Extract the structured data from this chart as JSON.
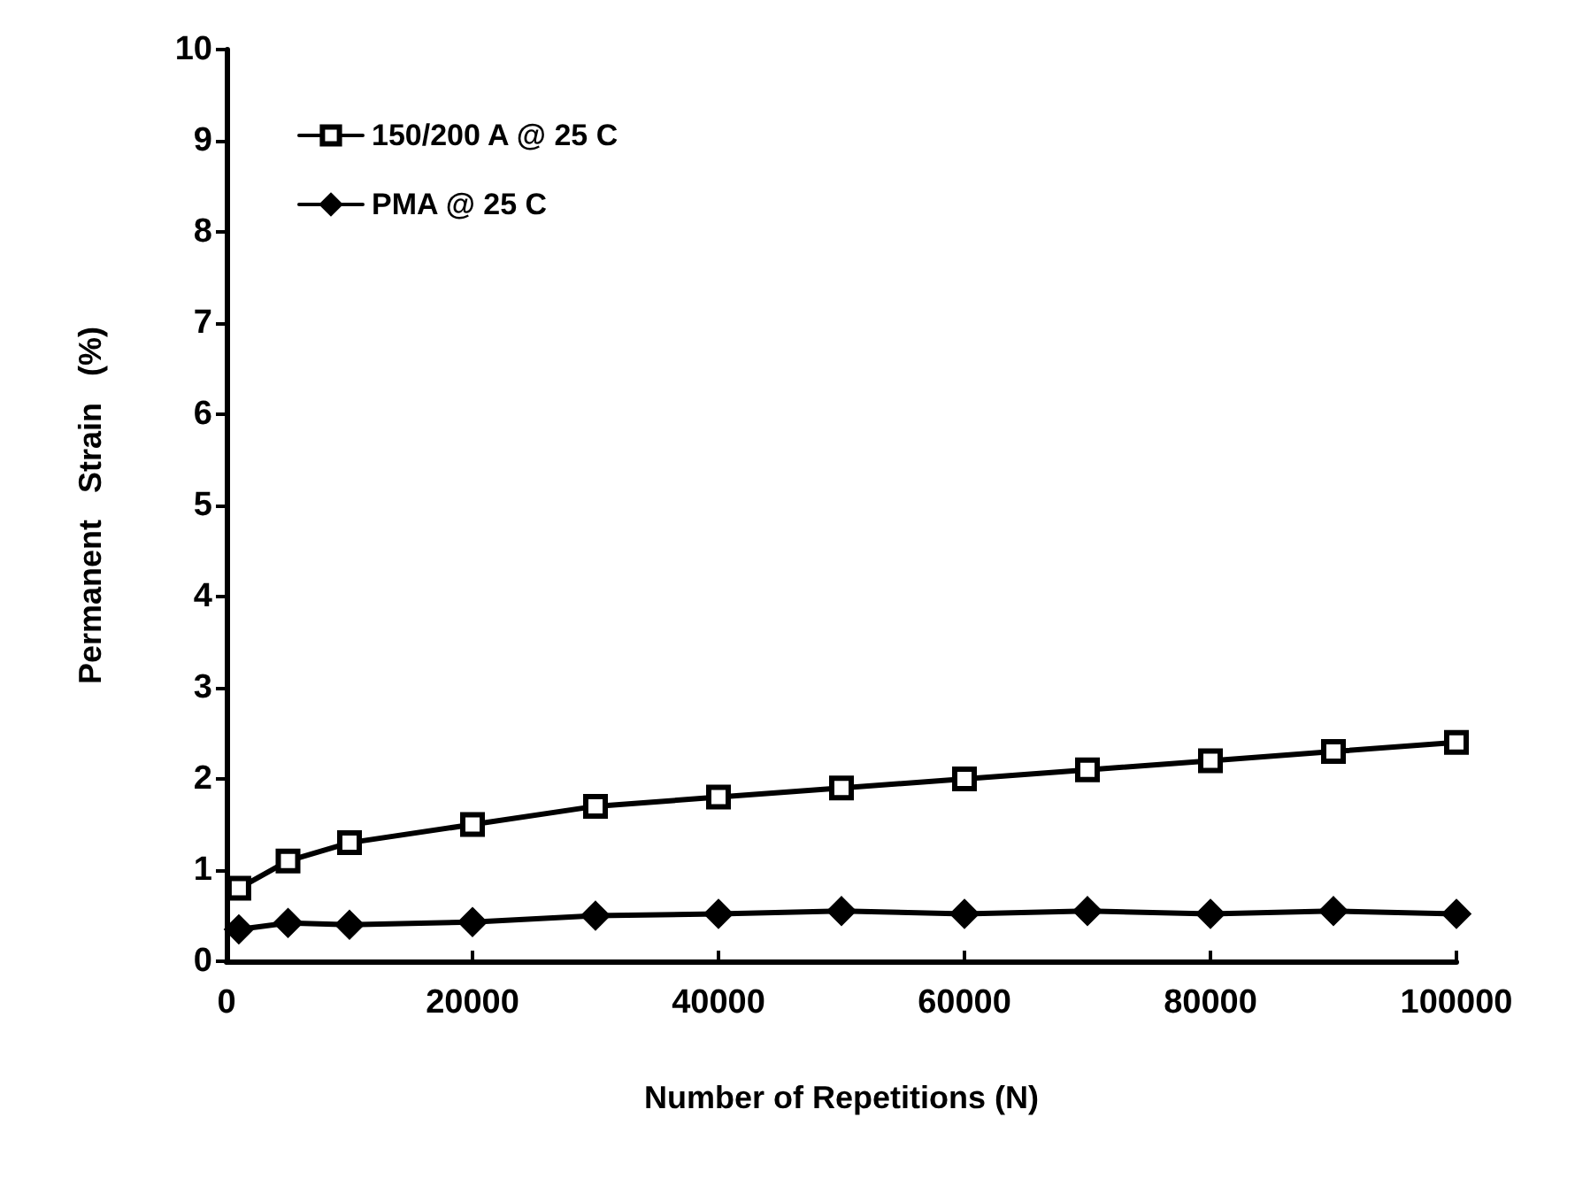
{
  "chart_data": {
    "type": "line",
    "xlabel": "Number of Repetitions (N)",
    "ylabel": "Permanent   Strain   (%)",
    "xlim": [
      0,
      100000
    ],
    "xticks": [
      0,
      20000,
      40000,
      60000,
      80000,
      100000
    ],
    "ylim": [
      0,
      10
    ],
    "yticks": [
      0,
      1,
      2,
      3,
      4,
      5,
      6,
      7,
      8,
      9,
      10
    ],
    "grid": false,
    "legend": "top left",
    "line_style": "solid",
    "series": [
      {
        "name": "150/200 A @ 25 C",
        "color": "#000000",
        "marker": "square",
        "x": [
          1000,
          5000,
          10000,
          20000,
          30000,
          40000,
          50000,
          60000,
          70000,
          80000,
          90000,
          100000
        ],
        "values": [
          0.8,
          1.1,
          1.3,
          1.5,
          1.7,
          1.8,
          1.9,
          2.0,
          2.1,
          2.2,
          2.3,
          2.4
        ]
      },
      {
        "name": "PMA @ 25 C",
        "color": "#000000",
        "marker": "diamond",
        "x": [
          1000,
          5000,
          10000,
          20000,
          30000,
          40000,
          50000,
          60000,
          70000,
          80000,
          90000,
          100000
        ],
        "values": [
          0.35,
          0.42,
          0.4,
          0.43,
          0.5,
          0.52,
          0.55,
          0.52,
          0.55,
          0.52,
          0.55,
          0.52
        ]
      }
    ]
  }
}
